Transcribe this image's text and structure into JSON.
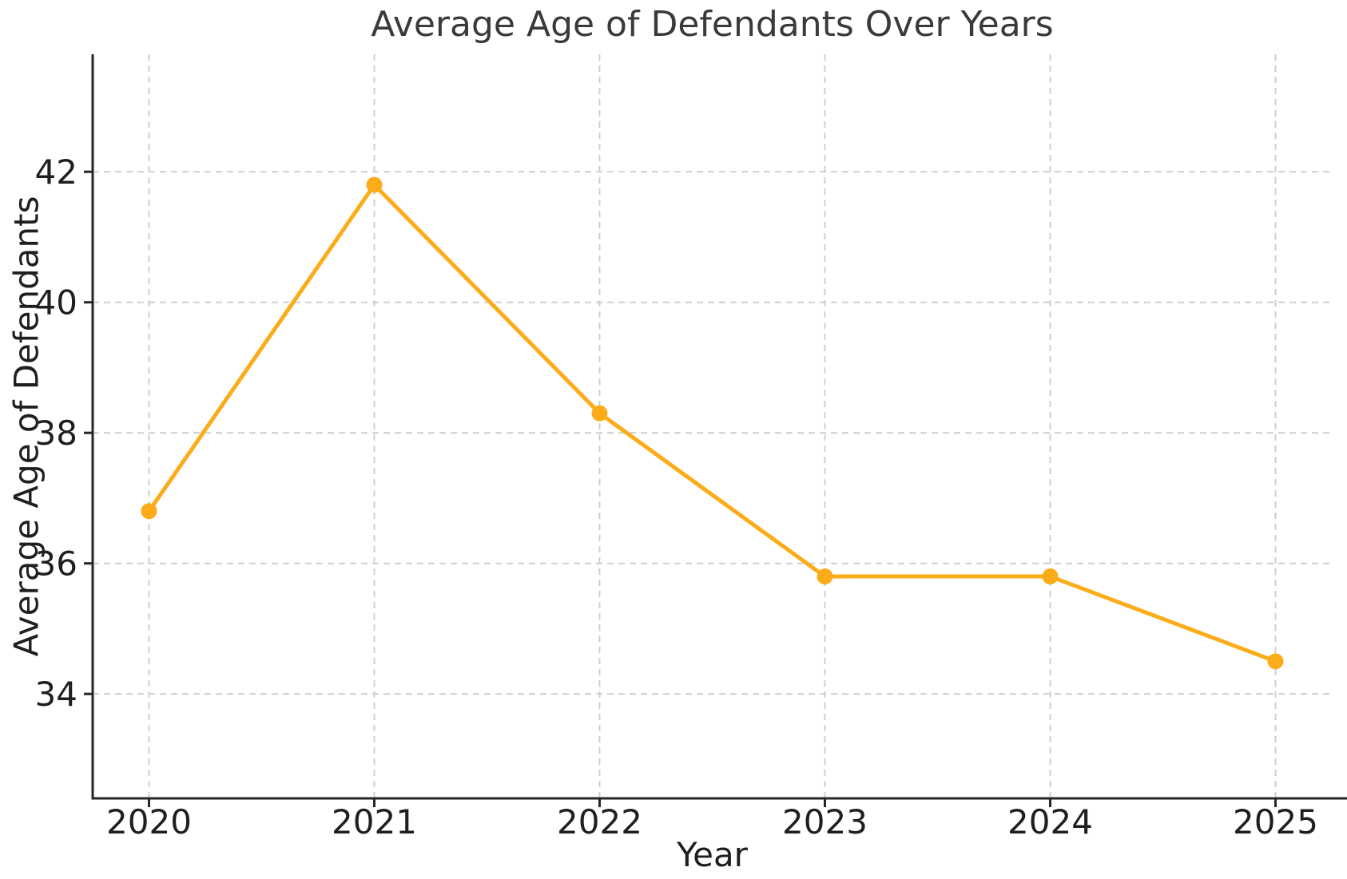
{
  "chart_data": {
    "type": "line",
    "title": "Average Age of Defendants Over Years",
    "xlabel": "Year",
    "ylabel": "Average Age of Defendants",
    "x": [
      2020,
      2021,
      2022,
      2023,
      2024,
      2025
    ],
    "series": [
      {
        "name": "Average Age of Defendants",
        "values": [
          36.8,
          41.8,
          38.3,
          35.8,
          35.8,
          34.5
        ]
      }
    ],
    "xticks": [
      "2020",
      "2021",
      "2022",
      "2023",
      "2024",
      "2025"
    ],
    "yticks": [
      "34",
      "36",
      "38",
      "40",
      "42"
    ],
    "xlim": [
      2019.75,
      2025.25
    ],
    "ylim": [
      32.4,
      43.8
    ],
    "grid": true,
    "grid_line_style": "dashed",
    "legend_position": "none",
    "marker_style": "circle",
    "colors": {
      "line": "#FBAC18",
      "marker": "#FBAC18",
      "grid": "#CCCCCC",
      "spine": "#262626",
      "tick_label": "#1F1F1F",
      "title": "#3A3A3A",
      "background": "#FFFFFF"
    }
  }
}
